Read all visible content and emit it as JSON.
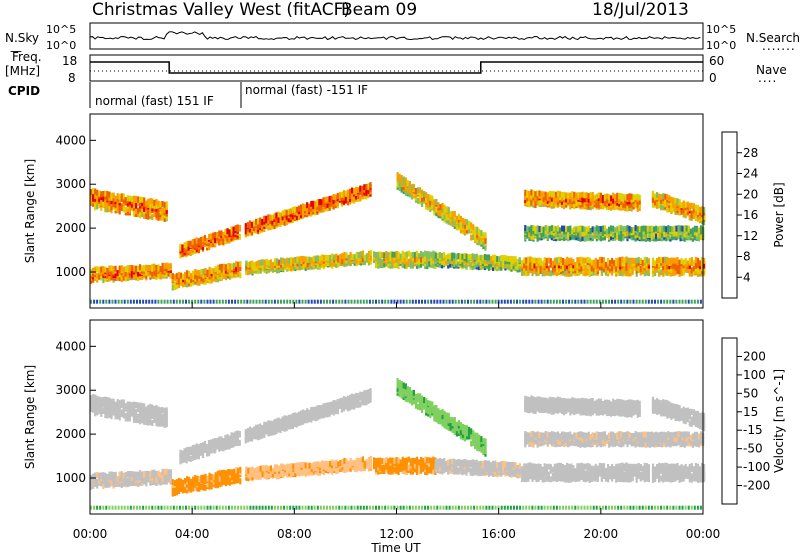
{
  "header": {
    "station": "Christmas Valley West (fitACF)",
    "beam": "Beam 09",
    "date": "18/Jul/2013"
  },
  "left_labels": {
    "nsky": "N.Sky",
    "freq": "Freq.",
    "freq_unit": "[MHz]",
    "cpid": "CPID"
  },
  "right_labels": {
    "nsearch": "N.Search",
    "nave": "Nave"
  },
  "ticks": {
    "noise_top": "10^5",
    "noise_bottom": "10^0",
    "freq_top": "18",
    "freq_bottom": "8",
    "nave_top": "60",
    "nave_bottom": "0"
  },
  "cpid_labels": {
    "first": "normal (fast) 151 IF",
    "second": "normal (fast) -151 IF"
  },
  "colors": {
    "power": [
      "#0000ee",
      "#2048b8",
      "#40a060",
      "#80c060",
      "#e0d000",
      "#f8a000",
      "#f06000",
      "#e80000"
    ],
    "velocity": [
      "#e80000",
      "#ff5000",
      "#ff9000",
      "#ffc080",
      "#c0c0c0",
      "#80d060",
      "#20a040",
      "#2060c0",
      "#0000d0"
    ]
  },
  "chart_data": [
    {
      "type": "heatmap",
      "panel": "power",
      "ylabel": "Slant Range [km]",
      "xlabel": "Time UT",
      "x_ticks": [
        "00:00",
        "04:00",
        "08:00",
        "12:00",
        "16:00",
        "20:00",
        "00:00"
      ],
      "y_ticks": [
        "1000",
        "2000",
        "3000",
        "4000"
      ],
      "ylim": [
        180,
        4600
      ],
      "colorbar": {
        "label": "Power [dB]",
        "ticks": [
          "4",
          "8",
          "12",
          "16",
          "20",
          "24",
          "28"
        ],
        "range": [
          0,
          32
        ]
      }
    },
    {
      "type": "heatmap",
      "panel": "velocity",
      "ylabel": "Slant Range [km]",
      "xlabel": "Time UT",
      "x_ticks": [
        "00:00",
        "04:00",
        "08:00",
        "12:00",
        "16:00",
        "20:00",
        "00:00"
      ],
      "y_ticks": [
        "1000",
        "2000",
        "3000",
        "4000"
      ],
      "ylim": [
        180,
        4600
      ],
      "colorbar": {
        "label": "Velocity [m s^-1]",
        "ticks": [
          "200",
          "100",
          "50",
          "15",
          "-15",
          "-50",
          "-100",
          "-200"
        ],
        "range": [
          -250,
          250
        ]
      }
    }
  ]
}
